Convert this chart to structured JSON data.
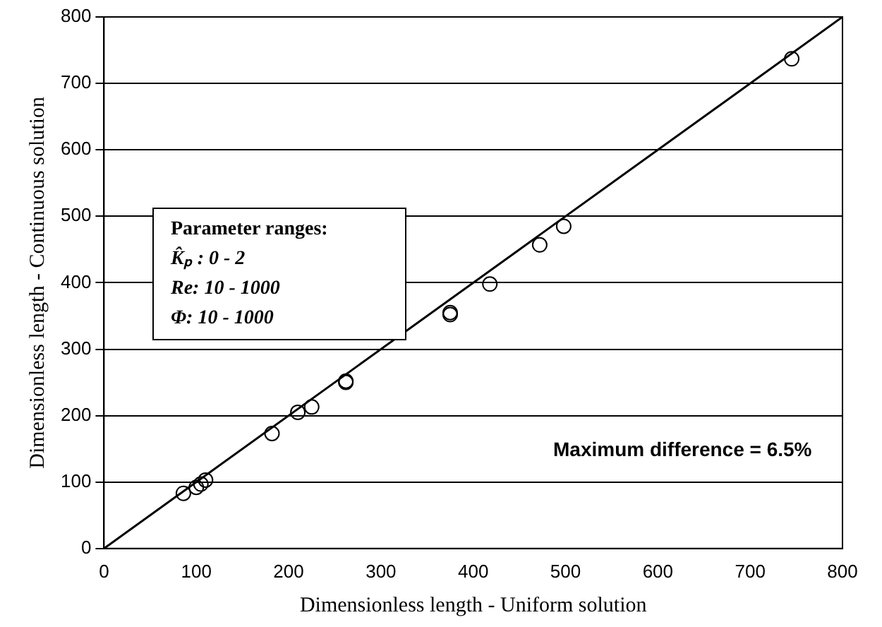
{
  "chart_data": {
    "type": "scatter",
    "xlabel": "Dimensionless length - Uniform solution",
    "ylabel": "Dimensionless length - Continuous solution",
    "series": [
      {
        "color": "#000000",
        "marker": "circle",
        "x": [
          86,
          100,
          105,
          110,
          182,
          210,
          225,
          262,
          262,
          375,
          375,
          418,
          472,
          498,
          745
        ],
        "values": [
          83,
          92,
          97,
          103,
          173,
          205,
          213,
          252,
          250,
          355,
          352,
          398,
          457,
          485,
          737
        ]
      },
      {
        "type": "line",
        "color": "#000000",
        "marker": "none",
        "line_style": "solid",
        "x": [
          0,
          800
        ],
        "values": [
          0,
          800
        ]
      }
    ],
    "xlim": [
      0,
      800
    ],
    "xticks": [
      0,
      100,
      200,
      300,
      400,
      500,
      600,
      700,
      800
    ],
    "ylim": [
      0,
      800
    ],
    "yticks": [
      0,
      100,
      200,
      300,
      400,
      500,
      600,
      700,
      800
    ],
    "grid": "y",
    "legend": false,
    "annotations": [
      "Parameter ranges:",
      "K̂ₚ : 0 - 2",
      "Re: 10 - 1000",
      "Φ: 10 - 1000",
      "Maximum difference = 6.5%"
    ]
  }
}
